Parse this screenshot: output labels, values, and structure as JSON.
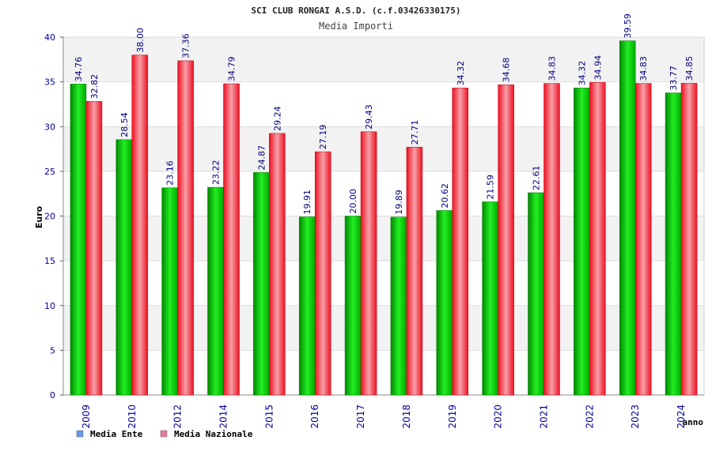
{
  "chart_data": {
    "type": "bar",
    "title": "SCI CLUB RONGAI A.S.D. (c.f.03426330175)",
    "subtitle": "Media Importi",
    "ylabel": "Euro",
    "xlabel": "anno",
    "ylim": [
      0,
      40
    ],
    "yticks": [
      "0",
      "5",
      "10",
      "15",
      "20",
      "25",
      "30",
      "35",
      "40"
    ],
    "grid": true,
    "legend_position": "bottom-left",
    "categories": [
      "2009",
      "2010",
      "2012",
      "2014",
      "2015",
      "2016",
      "2017",
      "2018",
      "2019",
      "2020",
      "2021",
      "2022",
      "2023",
      "2024"
    ],
    "series": [
      {
        "name": "Media Ente",
        "color": "#00cc00",
        "legend_color": "#6699ee",
        "values": [
          34.76,
          28.54,
          23.16,
          23.22,
          24.87,
          19.91,
          20.0,
          19.89,
          20.62,
          21.59,
          22.61,
          34.32,
          39.59,
          33.77
        ],
        "labels": [
          "34.76",
          "28.54",
          "23.16",
          "23.22",
          "24.87",
          "19.91",
          "20.00",
          "19.89",
          "20.62",
          "21.59",
          "22.61",
          "34.32",
          "39.59",
          "33.77"
        ]
      },
      {
        "name": "Media Nazionale",
        "color": "#ee1122",
        "legend_color": "#e87aa0",
        "values": [
          32.82,
          38.0,
          37.36,
          34.79,
          29.24,
          27.19,
          29.43,
          27.71,
          34.32,
          34.68,
          34.83,
          34.94,
          34.83,
          34.85
        ],
        "labels": [
          "32.82",
          "38.00",
          "37.36",
          "34.79",
          "29.24",
          "27.19",
          "29.43",
          "27.71",
          "34.32",
          "34.68",
          "34.83",
          "34.94",
          "34.83",
          "34.85"
        ]
      }
    ]
  }
}
